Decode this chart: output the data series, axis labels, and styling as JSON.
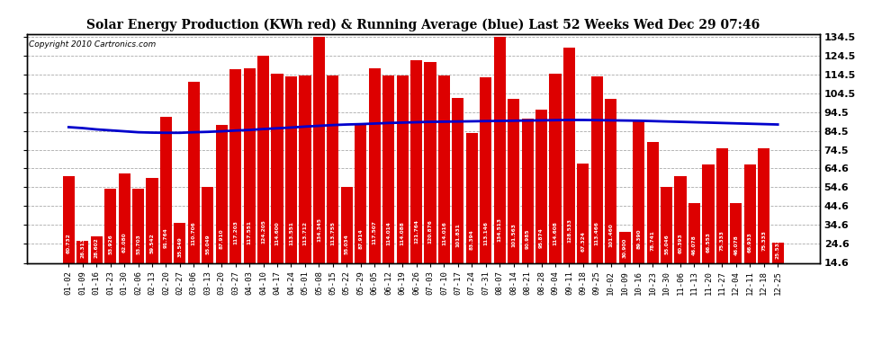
{
  "title": "Solar Energy Production (KWh red) & Running Average (blue) Last 52 Weeks Wed Dec 29 07:46",
  "copyright": "Copyright 2010 Cartronics.com",
  "bar_color": "#dd0000",
  "line_color": "#0000cc",
  "background_color": "#ffffff",
  "plot_bg_color": "#ffffff",
  "ylim": [
    14.6,
    136.0
  ],
  "yticks": [
    14.6,
    24.6,
    34.6,
    44.6,
    54.6,
    64.6,
    74.5,
    84.5,
    94.5,
    104.5,
    114.5,
    124.5,
    134.5
  ],
  "categories": [
    "01-02",
    "01-09",
    "01-16",
    "01-23",
    "01-30",
    "02-06",
    "02-13",
    "02-20",
    "02-27",
    "03-06",
    "03-13",
    "03-20",
    "03-27",
    "04-03",
    "04-10",
    "04-17",
    "04-24",
    "05-01",
    "05-08",
    "05-15",
    "05-22",
    "05-29",
    "06-05",
    "06-12",
    "06-19",
    "06-26",
    "07-03",
    "07-10",
    "07-17",
    "07-24",
    "07-31",
    "08-07",
    "08-14",
    "08-21",
    "08-28",
    "09-04",
    "09-11",
    "09-18",
    "09-25",
    "10-02",
    "10-09",
    "10-16",
    "10-23",
    "10-30",
    "11-06",
    "11-13",
    "11-20",
    "11-27",
    "12-04",
    "12-11",
    "12-18",
    "12-25"
  ],
  "values": [
    60.732,
    26.313,
    28.602,
    53.926,
    62.08,
    53.703,
    59.542,
    91.764,
    35.549,
    110.706,
    55.049,
    87.91,
    117.203,
    117.551,
    124.205,
    114.6,
    113.551,
    113.712,
    134.345,
    113.755,
    55.034,
    87.914,
    117.507,
    114.014,
    114.088,
    121.764,
    120.876,
    114.016,
    101.831,
    83.394,
    113.146,
    134.513,
    101.563,
    90.985,
    95.874,
    114.608,
    128.533,
    67.324,
    113.466,
    101.46,
    30.9,
    89.39,
    78.741,
    55.046,
    60.393,
    46.078,
    66.553,
    75.333,
    46.078,
    66.933,
    75.333,
    25.533
  ],
  "running_avg": [
    86.5,
    86.0,
    85.3,
    84.8,
    84.3,
    83.8,
    83.6,
    83.5,
    83.5,
    83.8,
    84.0,
    84.3,
    84.7,
    85.0,
    85.5,
    85.9,
    86.3,
    86.8,
    87.2,
    87.6,
    87.9,
    88.1,
    88.4,
    88.7,
    88.9,
    89.1,
    89.3,
    89.4,
    89.5,
    89.6,
    89.7,
    89.8,
    89.9,
    90.0,
    90.1,
    90.2,
    90.3,
    90.3,
    90.2,
    90.1,
    90.0,
    89.9,
    89.7,
    89.5,
    89.3,
    89.1,
    88.9,
    88.7,
    88.5,
    88.3,
    88.1,
    87.9
  ]
}
